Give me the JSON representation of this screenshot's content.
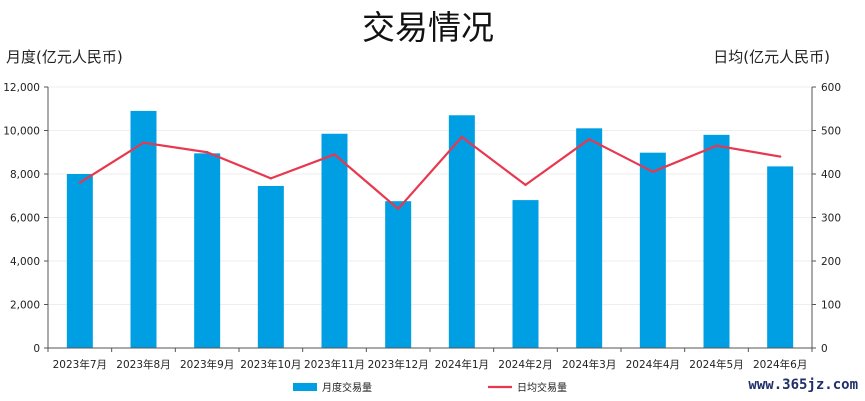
{
  "chart_data": {
    "type": "bar",
    "title": "交易情况",
    "ylabel": "月度(亿元人民币)",
    "y2label": "日均(亿元人民币)",
    "categories": [
      "2023年7月",
      "2023年8月",
      "2023年9月",
      "2023年10月",
      "2023年11月",
      "2023年12月",
      "2024年1月",
      "2024年2月",
      "2024年3月",
      "2024年4月",
      "2024年5月",
      "2024年6月"
    ],
    "ylim": [
      0,
      12000
    ],
    "y2lim": [
      0,
      600
    ],
    "yticks": [
      "0",
      "2,000",
      "4,000",
      "6,000",
      "8,000",
      "10,000",
      "12,000"
    ],
    "y2ticks": [
      "0",
      "100",
      "200",
      "300",
      "400",
      "500",
      "600"
    ],
    "grid": true,
    "legend_position": "bottom",
    "series": [
      {
        "name": "月度交易量",
        "type": "bar",
        "axis": "left",
        "color": "#009fe3",
        "values": [
          8000,
          10900,
          8950,
          7450,
          9850,
          6750,
          10700,
          6800,
          10100,
          8980,
          9800,
          8350
        ]
      },
      {
        "name": "日均交易量",
        "type": "line",
        "axis": "right",
        "color": "#e8384f",
        "values": [
          380,
          472,
          450,
          390,
          445,
          320,
          485,
          375,
          480,
          405,
          465,
          440
        ]
      }
    ]
  },
  "watermark": "www.365jz.com"
}
